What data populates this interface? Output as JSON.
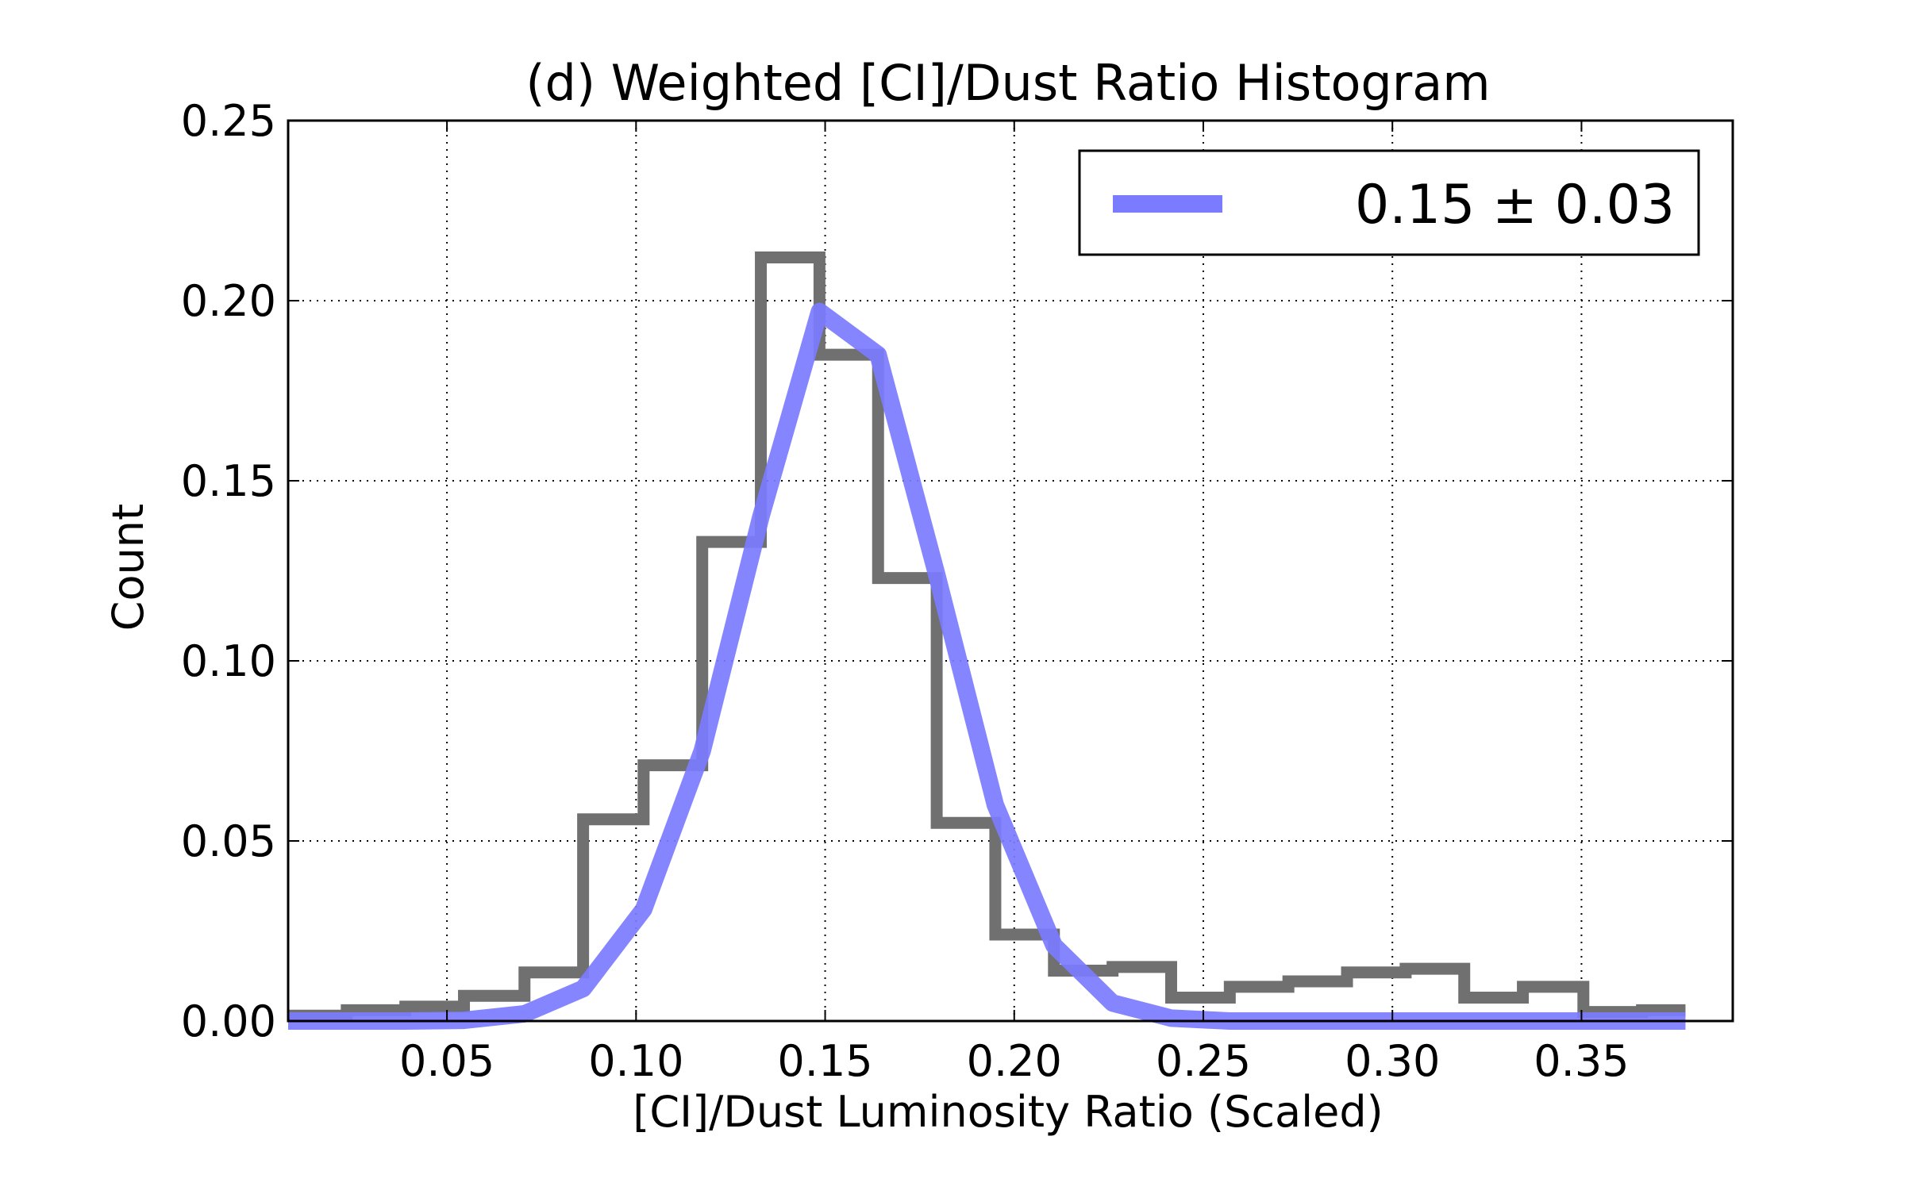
{
  "chart_data": {
    "type": "line",
    "title": "(d) Weighted [CI]/Dust Ratio Histogram",
    "xlabel": "[CI]/Dust Luminosity Ratio (Scaled)",
    "ylabel": "Count",
    "xlim": [
      0.008,
      0.39
    ],
    "ylim": [
      0.0,
      0.25
    ],
    "xticks": [
      0.05,
      0.1,
      0.15,
      0.2,
      0.25,
      0.3,
      0.35
    ],
    "xtick_labels": [
      "0.05",
      "0.10",
      "0.15",
      "0.20",
      "0.25",
      "0.30",
      "0.35"
    ],
    "yticks": [
      0.0,
      0.05,
      0.1,
      0.15,
      0.2,
      0.25
    ],
    "ytick_labels": [
      "0.00",
      "0.05",
      "0.10",
      "0.15",
      "0.20",
      "0.25"
    ],
    "grid": true,
    "legend": {
      "placement": "top-right",
      "entries": [
        {
          "label": "0.15 ± 0.03",
          "color": "#7b7bff"
        }
      ]
    },
    "series": [
      {
        "kind": "step-histogram",
        "color": "#707070",
        "bin_edges": [
          0.008,
          0.0235,
          0.039,
          0.0545,
          0.0705,
          0.086,
          0.102,
          0.1175,
          0.133,
          0.1485,
          0.164,
          0.1795,
          0.195,
          0.2105,
          0.226,
          0.2415,
          0.257,
          0.2725,
          0.288,
          0.3035,
          0.319,
          0.3345,
          0.3505,
          0.366,
          0.3775
        ],
        "values": [
          0.0015,
          0.003,
          0.004,
          0.007,
          0.0135,
          0.056,
          0.071,
          0.133,
          0.212,
          0.185,
          0.123,
          0.055,
          0.024,
          0.014,
          0.015,
          0.0065,
          0.0095,
          0.011,
          0.0135,
          0.0145,
          0.0065,
          0.0095,
          0.0025,
          0.003
        ]
      },
      {
        "label": "0.15 ± 0.03",
        "kind": "line",
        "color": "#7b7bff",
        "x": [
          0.008,
          0.0235,
          0.039,
          0.0545,
          0.0705,
          0.086,
          0.102,
          0.1175,
          0.133,
          0.1485,
          0.164,
          0.1795,
          0.195,
          0.2105,
          0.226,
          0.2415,
          0.257,
          0.2725,
          0.288,
          0.3035,
          0.319,
          0.3345,
          0.3505,
          0.366,
          0.3775
        ],
        "y": [
          0.0,
          0.0,
          0.0,
          0.0002,
          0.002,
          0.009,
          0.031,
          0.075,
          0.14,
          0.197,
          0.185,
          0.124,
          0.06,
          0.021,
          0.005,
          0.0008,
          0.0,
          0.0,
          0.0,
          0.0,
          0.0,
          0.0,
          0.0,
          0.0,
          0.0
        ]
      }
    ]
  }
}
